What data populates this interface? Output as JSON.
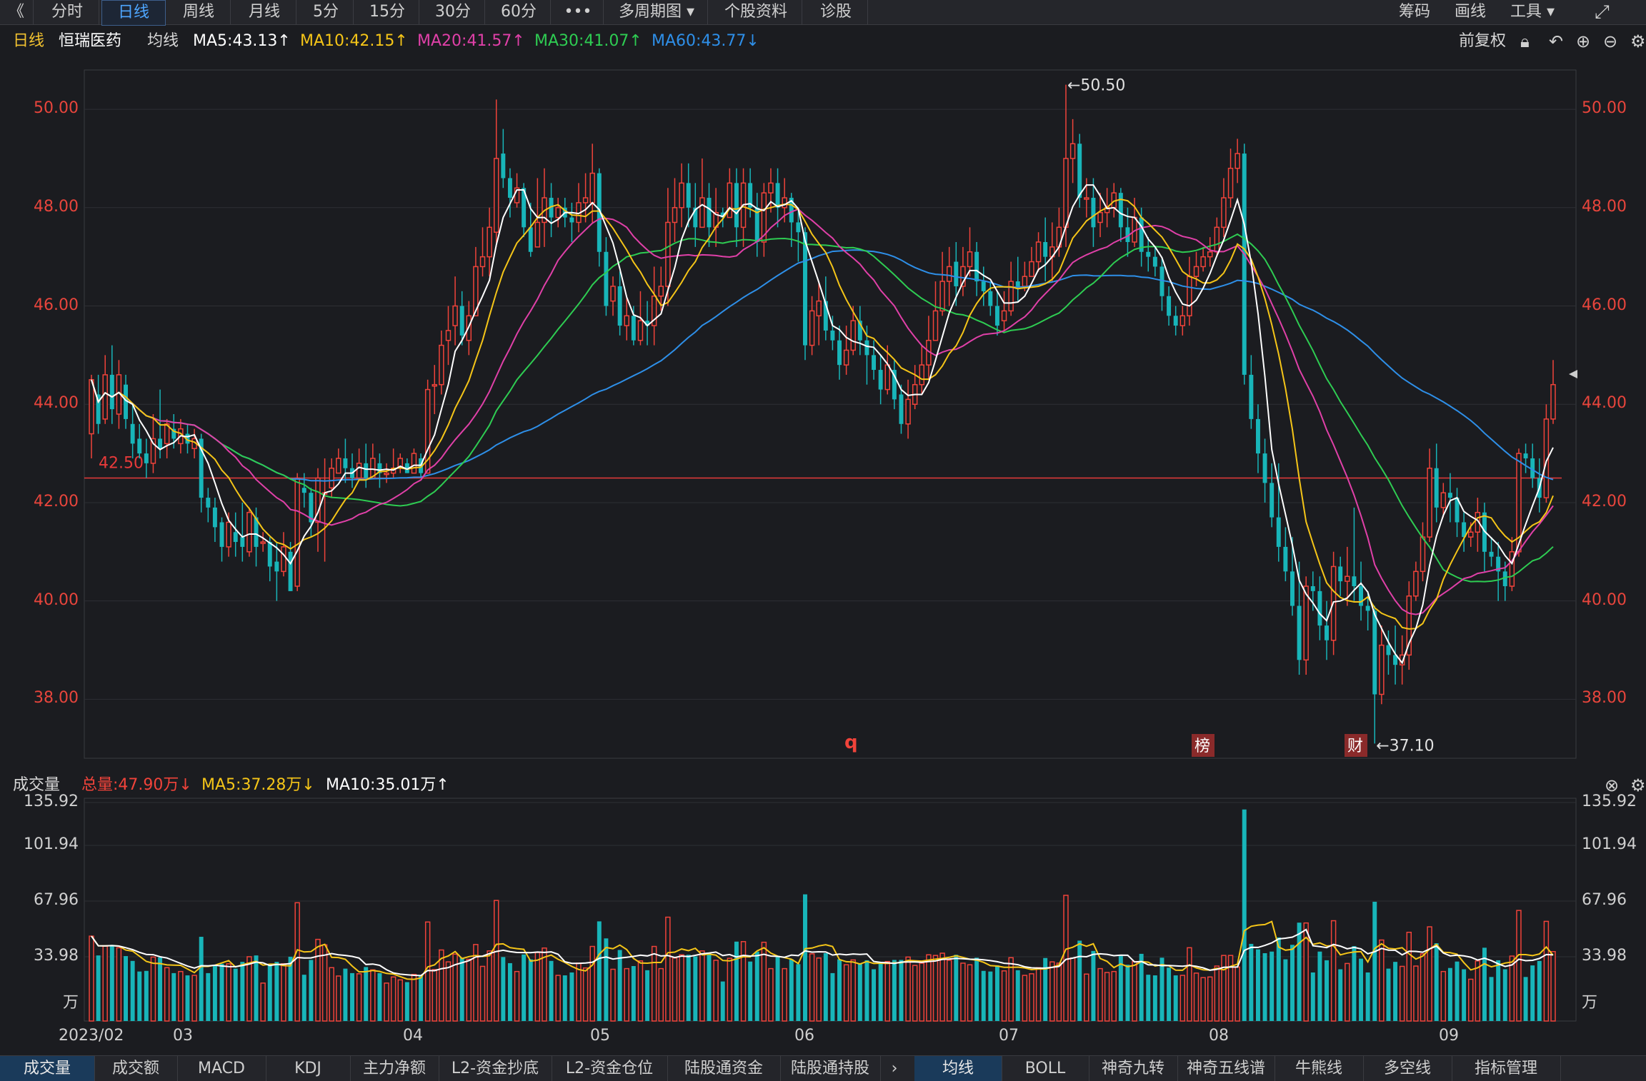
{
  "toolbar": {
    "back": "《",
    "tabs": [
      "分时",
      "日线",
      "周线",
      "月线",
      "5分",
      "15分",
      "30分",
      "60分",
      "•••",
      "多周期图 ▾",
      "个股资料",
      "诊股"
    ],
    "active_index": 1,
    "right": [
      "筹码",
      "画线",
      "工具 ▾"
    ]
  },
  "info": {
    "period": "日线",
    "stock": "恒瑞医药",
    "ma_label": "均线",
    "ma5": "MA5:43.13↑",
    "ma10": "MA10:42.15↑",
    "ma20": "MA20:41.57↑",
    "ma30": "MA30:41.07↑",
    "ma60": "MA60:43.77↓",
    "adjust": "前复权"
  },
  "colors": {
    "up": "#f0433a",
    "down": "#18b5b9",
    "ma5": "#ffffff",
    "ma10": "#f5c518",
    "ma20": "#e040a8",
    "ma30": "#2ecc52",
    "ma60": "#2e8fe8",
    "ref_line": "#e83a3a"
  },
  "chart": {
    "price_ticks": [
      "50.00",
      "48.00",
      "46.00",
      "44.00",
      "42.00",
      "40.00",
      "38.00"
    ],
    "ref_label": "42.50",
    "high_label": "←50.50",
    "low_label": "←37.10",
    "markers": [
      "q",
      "榜",
      "财"
    ]
  },
  "volume": {
    "title": "成交量",
    "total": "总量:47.90万↓",
    "ma5": "MA5:37.28万↓",
    "ma10": "MA10:35.01万↑",
    "ticks": [
      "135.92",
      "101.94",
      "67.96",
      "33.98",
      "万"
    ]
  },
  "xaxis": [
    "2023/02",
    "03",
    "04",
    "05",
    "06",
    "07",
    "08",
    "09"
  ],
  "bottom_left": [
    "成交量",
    "成交额",
    "MACD",
    "KDJ",
    "主力净额",
    "L2-资金抄底",
    "L2-资金仓位",
    "陆股通资金",
    "陆股通持股"
  ],
  "bottom_right": [
    "均线",
    "BOLL",
    "神奇九转",
    "神奇五线谱",
    "牛熊线",
    "多空线",
    "指标管理"
  ],
  "chart_data": {
    "type": "candlestick",
    "title": "恒瑞医药 日线",
    "x": [
      "2023/02",
      "03",
      "04",
      "05",
      "06",
      "07",
      "08",
      "09"
    ],
    "ylim": [
      36.8,
      50.8
    ],
    "candles": [
      [
        43.4,
        44.5,
        42.9,
        44.6
      ],
      [
        44.2,
        43.6,
        43.4,
        44.6
      ],
      [
        43.7,
        44.6,
        43.6,
        45.0
      ],
      [
        44.6,
        43.9,
        43.6,
        45.2
      ],
      [
        43.8,
        44.6,
        43.5,
        44.9
      ],
      [
        44.4,
        43.7,
        43.5,
        44.6
      ],
      [
        43.6,
        43.2,
        42.9,
        44.0
      ],
      [
        43.3,
        43.0,
        42.9,
        43.6
      ],
      [
        43.0,
        42.8,
        42.5,
        43.3
      ],
      [
        42.8,
        43.3,
        42.6,
        43.8
      ],
      [
        43.3,
        43.1,
        42.9,
        44.3
      ],
      [
        43.2,
        43.6,
        42.9,
        43.7
      ],
      [
        43.5,
        43.3,
        43.1,
        43.8
      ],
      [
        43.2,
        43.5,
        43.0,
        43.7
      ],
      [
        43.4,
        43.2,
        43.0,
        43.6
      ],
      [
        43.1,
        43.3,
        42.9,
        43.5
      ],
      [
        43.3,
        42.1,
        41.8,
        43.4
      ],
      [
        42.1,
        41.9,
        41.6,
        42.3
      ],
      [
        41.9,
        41.5,
        41.2,
        42.1
      ],
      [
        41.6,
        41.1,
        40.8,
        41.7
      ],
      [
        41.1,
        41.6,
        40.9,
        41.8
      ],
      [
        41.4,
        41.2,
        40.9,
        41.8
      ],
      [
        41.3,
        41.1,
        40.8,
        42.0
      ],
      [
        41.0,
        41.8,
        40.9,
        41.9
      ],
      [
        41.7,
        41.1,
        40.7,
        41.9
      ],
      [
        41.2,
        41.2,
        41.0,
        41.4
      ],
      [
        41.2,
        40.7,
        40.4,
        41.3
      ],
      [
        40.8,
        40.6,
        40.0,
        41.2
      ],
      [
        40.6,
        41.1,
        40.5,
        41.4
      ],
      [
        41.0,
        40.2,
        40.2,
        41.2
      ],
      [
        40.3,
        42.5,
        40.2,
        42.6
      ],
      [
        42.3,
        42.2,
        41.9,
        42.6
      ],
      [
        42.2,
        41.6,
        41.3,
        42.3
      ],
      [
        41.6,
        42.5,
        41.0,
        42.7
      ],
      [
        42.2,
        42.2,
        40.8,
        42.9
      ],
      [
        42.3,
        42.7,
        42.1,
        42.9
      ],
      [
        42.6,
        42.9,
        42.6,
        43.1
      ],
      [
        42.9,
        42.7,
        42.4,
        43.3
      ],
      [
        42.7,
        42.5,
        42.3,
        43.0
      ],
      [
        42.5,
        42.8,
        42.5,
        43.1
      ],
      [
        42.8,
        42.5,
        42.3,
        43.2
      ],
      [
        42.5,
        42.9,
        42.5,
        43.2
      ],
      [
        42.8,
        42.6,
        42.3,
        43.0
      ],
      [
        42.6,
        42.6,
        42.4,
        42.8
      ],
      [
        42.6,
        42.7,
        42.5,
        43.1
      ],
      [
        42.7,
        42.9,
        42.6,
        43.0
      ],
      [
        42.8,
        42.6,
        42.6,
        42.9
      ],
      [
        42.6,
        43.0,
        42.6,
        43.1
      ],
      [
        42.9,
        42.6,
        42.5,
        43.0
      ],
      [
        42.6,
        44.3,
        42.6,
        44.5
      ],
      [
        44.4,
        44.4,
        43.8,
        44.8
      ],
      [
        44.4,
        45.2,
        44.2,
        45.5
      ],
      [
        45.3,
        45.5,
        44.8,
        46.0
      ],
      [
        45.6,
        46.0,
        45.2,
        46.6
      ],
      [
        46.0,
        45.4,
        45.2,
        46.3
      ],
      [
        45.3,
        45.8,
        45.0,
        46.1
      ],
      [
        45.8,
        46.8,
        45.8,
        47.2
      ],
      [
        46.8,
        47.0,
        46.6,
        47.6
      ],
      [
        47.0,
        47.6,
        46.6,
        48.0
      ],
      [
        47.5,
        49.0,
        47.2,
        50.2
      ],
      [
        49.1,
        48.6,
        48.4,
        49.6
      ],
      [
        48.6,
        48.2,
        47.8,
        48.8
      ],
      [
        48.1,
        48.4,
        48.0,
        48.7
      ],
      [
        48.4,
        47.6,
        47.4,
        48.5
      ],
      [
        47.6,
        47.1,
        47.0,
        48.1
      ],
      [
        47.2,
        47.7,
        47.2,
        48.6
      ],
      [
        47.7,
        48.2,
        47.2,
        48.8
      ],
      [
        48.2,
        47.8,
        47.4,
        48.5
      ],
      [
        47.8,
        48.0,
        47.6,
        48.2
      ],
      [
        48.0,
        47.8,
        47.6,
        48.2
      ],
      [
        47.8,
        47.7,
        47.3,
        48.1
      ],
      [
        47.7,
        48.1,
        47.5,
        48.5
      ],
      [
        48.1,
        48.2,
        47.7,
        48.7
      ],
      [
        48.1,
        48.7,
        47.7,
        49.3
      ],
      [
        48.7,
        47.1,
        46.8,
        48.8
      ],
      [
        47.1,
        46.0,
        45.8,
        47.4
      ],
      [
        46.1,
        46.4,
        45.8,
        46.6
      ],
      [
        46.4,
        45.6,
        45.4,
        46.7
      ],
      [
        45.6,
        45.8,
        45.3,
        46.2
      ],
      [
        45.8,
        45.3,
        45.2,
        46.0
      ],
      [
        45.3,
        45.7,
        45.2,
        46.3
      ],
      [
        45.7,
        45.6,
        45.2,
        46.1
      ],
      [
        45.6,
        46.2,
        45.2,
        46.8
      ],
      [
        46.2,
        46.4,
        45.9,
        46.8
      ],
      [
        46.4,
        47.7,
        46.0,
        48.4
      ],
      [
        47.7,
        48.0,
        47.3,
        48.6
      ],
      [
        48.0,
        48.5,
        47.6,
        48.9
      ],
      [
        48.5,
        48.0,
        47.6,
        48.9
      ],
      [
        48.0,
        47.6,
        47.2,
        48.5
      ],
      [
        47.6,
        48.2,
        47.6,
        49.0
      ],
      [
        48.2,
        47.6,
        47.2,
        48.5
      ],
      [
        47.6,
        47.9,
        47.2,
        48.4
      ],
      [
        47.9,
        47.8,
        47.6,
        48.0
      ],
      [
        47.8,
        48.5,
        47.8,
        48.8
      ],
      [
        48.5,
        47.6,
        47.2,
        48.8
      ],
      [
        47.6,
        48.5,
        47.2,
        48.8
      ],
      [
        48.5,
        48.0,
        47.8,
        48.8
      ],
      [
        48.0,
        47.3,
        47.0,
        48.3
      ],
      [
        47.3,
        48.3,
        47.0,
        48.5
      ],
      [
        48.3,
        48.5,
        47.9,
        48.8
      ],
      [
        48.5,
        48.0,
        47.6,
        48.8
      ],
      [
        48.0,
        48.2,
        47.7,
        48.6
      ],
      [
        48.2,
        47.7,
        47.2,
        48.3
      ],
      [
        47.7,
        47.5,
        46.9,
        48.0
      ],
      [
        47.5,
        45.2,
        44.9,
        47.6
      ],
      [
        45.2,
        45.9,
        45.0,
        46.2
      ],
      [
        45.8,
        46.1,
        45.2,
        46.5
      ],
      [
        46.1,
        45.5,
        45.3,
        46.6
      ],
      [
        45.5,
        45.3,
        45.1,
        45.8
      ],
      [
        45.3,
        44.8,
        44.5,
        45.6
      ],
      [
        44.8,
        45.1,
        44.6,
        45.6
      ],
      [
        45.1,
        45.7,
        45.0,
        46.0
      ],
      [
        45.7,
        45.3,
        45.0,
        46.0
      ],
      [
        45.3,
        45.0,
        44.4,
        45.6
      ],
      [
        45.0,
        44.7,
        44.5,
        45.3
      ],
      [
        44.7,
        44.3,
        44.0,
        45.0
      ],
      [
        44.3,
        44.8,
        44.2,
        45.2
      ],
      [
        44.7,
        44.1,
        43.9,
        44.9
      ],
      [
        44.2,
        43.6,
        43.4,
        44.4
      ],
      [
        43.6,
        44.1,
        43.3,
        44.5
      ],
      [
        44.0,
        44.4,
        43.9,
        44.8
      ],
      [
        44.4,
        44.8,
        44.2,
        45.2
      ],
      [
        44.8,
        45.3,
        44.5,
        45.8
      ],
      [
        45.3,
        45.9,
        45.3,
        46.5
      ],
      [
        45.9,
        46.5,
        45.8,
        47.1
      ],
      [
        46.5,
        46.8,
        46.0,
        47.2
      ],
      [
        46.9,
        46.4,
        46.0,
        47.3
      ],
      [
        46.4,
        46.8,
        46.2,
        47.2
      ],
      [
        46.8,
        47.1,
        46.6,
        47.6
      ],
      [
        47.1,
        46.5,
        46.2,
        47.3
      ],
      [
        46.5,
        46.3,
        46.0,
        46.8
      ],
      [
        46.3,
        46.0,
        45.8,
        46.5
      ],
      [
        46.0,
        45.6,
        45.4,
        46.3
      ],
      [
        45.7,
        45.9,
        45.5,
        46.3
      ],
      [
        45.9,
        46.5,
        45.8,
        46.9
      ],
      [
        46.5,
        46.4,
        46.1,
        47.0
      ],
      [
        46.4,
        46.6,
        46.3,
        46.9
      ],
      [
        46.6,
        46.9,
        46.6,
        47.2
      ],
      [
        46.9,
        47.3,
        46.7,
        47.5
      ],
      [
        47.3,
        47.0,
        46.5,
        47.8
      ],
      [
        47.0,
        47.2,
        46.5,
        47.7
      ],
      [
        47.2,
        47.6,
        47.0,
        48.0
      ],
      [
        47.6,
        49.0,
        47.2,
        50.5
      ],
      [
        49.0,
        49.3,
        48.5,
        49.8
      ],
      [
        49.3,
        48.2,
        48.0,
        49.5
      ],
      [
        48.2,
        48.2,
        47.8,
        48.6
      ],
      [
        48.2,
        47.6,
        47.2,
        48.6
      ],
      [
        47.7,
        47.9,
        47.4,
        48.3
      ],
      [
        47.9,
        48.0,
        47.6,
        48.4
      ],
      [
        48.0,
        48.3,
        47.8,
        48.5
      ],
      [
        48.3,
        47.6,
        47.3,
        48.4
      ],
      [
        47.6,
        47.3,
        47.0,
        48.0
      ],
      [
        47.3,
        47.8,
        47.2,
        48.2
      ],
      [
        47.8,
        47.1,
        46.8,
        48.0
      ],
      [
        47.1,
        47.0,
        46.7,
        47.4
      ],
      [
        47.0,
        46.8,
        46.6,
        47.2
      ],
      [
        46.8,
        46.2,
        45.9,
        47.0
      ],
      [
        46.2,
        45.8,
        45.6,
        46.4
      ],
      [
        45.8,
        45.6,
        45.4,
        46.0
      ],
      [
        45.6,
        45.8,
        45.4,
        46.0
      ],
      [
        45.8,
        46.6,
        45.6,
        47.0
      ],
      [
        46.6,
        46.8,
        46.4,
        47.1
      ],
      [
        46.8,
        47.0,
        46.7,
        47.2
      ],
      [
        47.0,
        47.1,
        46.8,
        47.4
      ],
      [
        47.1,
        47.6,
        47.0,
        47.8
      ],
      [
        47.6,
        48.2,
        47.4,
        48.6
      ],
      [
        48.2,
        48.8,
        48.0,
        49.2
      ],
      [
        48.8,
        49.1,
        48.5,
        49.4
      ],
      [
        49.1,
        44.6,
        44.4,
        49.3
      ],
      [
        44.6,
        43.7,
        43.5,
        45.0
      ],
      [
        43.7,
        43.0,
        42.6,
        44.0
      ],
      [
        43.0,
        42.4,
        42.0,
        43.3
      ],
      [
        42.4,
        41.7,
        41.5,
        42.8
      ],
      [
        41.7,
        41.1,
        40.8,
        42.8
      ],
      [
        41.1,
        40.6,
        40.4,
        41.5
      ],
      [
        40.6,
        39.9,
        39.7,
        41.3
      ],
      [
        39.9,
        38.8,
        38.5,
        40.8
      ],
      [
        38.8,
        40.3,
        38.5,
        40.5
      ],
      [
        40.3,
        40.2,
        39.8,
        40.6
      ],
      [
        40.2,
        39.5,
        39.2,
        40.5
      ],
      [
        39.5,
        39.2,
        38.8,
        40.0
      ],
      [
        39.2,
        40.7,
        38.9,
        41.0
      ],
      [
        40.7,
        40.4,
        40.1,
        40.9
      ],
      [
        40.4,
        40.5,
        39.9,
        41.1
      ],
      [
        40.5,
        40.3,
        40.0,
        41.9
      ],
      [
        40.3,
        39.9,
        39.6,
        40.8
      ],
      [
        39.9,
        39.8,
        39.4,
        40.2
      ],
      [
        39.8,
        38.1,
        37.1,
        39.9
      ],
      [
        38.1,
        39.1,
        37.9,
        39.5
      ],
      [
        39.1,
        38.9,
        38.5,
        39.4
      ],
      [
        38.9,
        38.7,
        38.3,
        39.5
      ],
      [
        38.7,
        38.9,
        38.3,
        39.3
      ],
      [
        38.9,
        40.1,
        38.6,
        40.4
      ],
      [
        40.1,
        40.6,
        40.0,
        40.8
      ],
      [
        40.6,
        41.3,
        40.4,
        41.6
      ],
      [
        41.3,
        42.7,
        41.2,
        43.1
      ],
      [
        42.7,
        41.9,
        41.6,
        43.2
      ],
      [
        41.9,
        42.2,
        41.7,
        42.4
      ],
      [
        42.2,
        42.1,
        41.6,
        42.6
      ],
      [
        42.1,
        41.6,
        41.3,
        42.3
      ],
      [
        41.6,
        41.3,
        41.0,
        41.8
      ],
      [
        41.3,
        41.4,
        41.1,
        41.6
      ],
      [
        41.4,
        41.8,
        41.0,
        42.1
      ],
      [
        41.8,
        41.0,
        40.6,
        42.0
      ],
      [
        41.0,
        40.9,
        40.7,
        41.3
      ],
      [
        40.9,
        40.6,
        40.0,
        41.2
      ],
      [
        40.6,
        40.3,
        40.0,
        40.8
      ],
      [
        40.3,
        41.0,
        40.2,
        41.3
      ],
      [
        41.0,
        43.0,
        40.9,
        43.1
      ],
      [
        43.0,
        42.9,
        42.6,
        43.2
      ],
      [
        42.9,
        42.5,
        42.3,
        43.2
      ],
      [
        42.5,
        42.1,
        41.8,
        42.9
      ],
      [
        42.1,
        43.7,
        42.0,
        44.0
      ],
      [
        43.7,
        44.4,
        43.6,
        44.9
      ]
    ],
    "volume_ylim": [
      0,
      140
    ],
    "volume_scale": "万"
  }
}
